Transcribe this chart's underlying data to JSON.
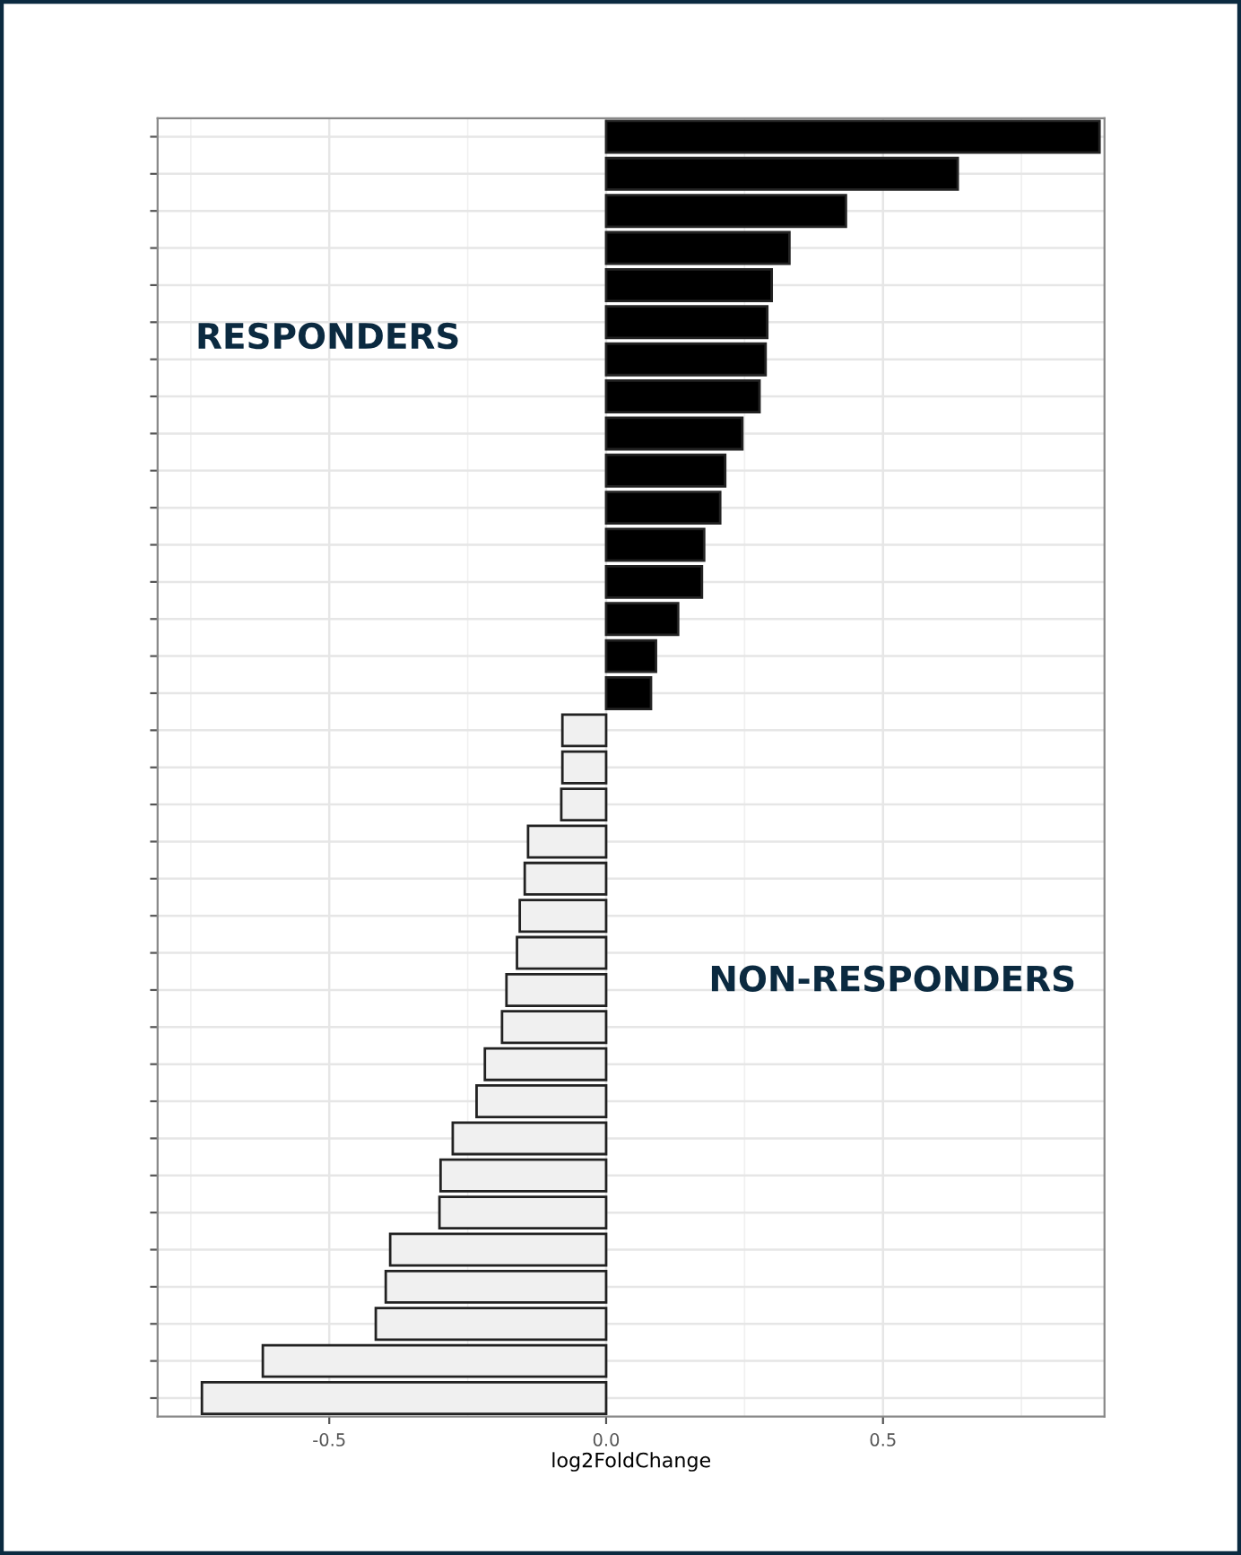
{
  "chart_data": {
    "type": "bar",
    "orientation": "horizontal",
    "xlabel": "log2FoldChange",
    "categories": [
      null,
      null,
      null,
      null,
      null,
      null,
      null,
      null,
      null,
      null,
      null,
      null,
      null,
      null,
      null,
      null,
      null,
      null,
      null,
      null,
      null,
      null,
      null,
      null,
      null,
      null,
      null,
      null,
      null,
      null,
      null,
      null,
      null,
      null,
      null
    ],
    "values": [
      0.891,
      0.635,
      0.433,
      0.331,
      0.299,
      0.291,
      0.288,
      0.277,
      0.246,
      0.215,
      0.206,
      0.177,
      0.173,
      0.13,
      0.09,
      0.081,
      -0.079,
      -0.079,
      -0.081,
      -0.141,
      -0.147,
      -0.156,
      -0.161,
      -0.18,
      -0.188,
      -0.219,
      -0.234,
      -0.277,
      -0.299,
      -0.301,
      -0.39,
      -0.398,
      -0.416,
      -0.62,
      -0.73
    ],
    "colors": [
      "#000000",
      "#000000",
      "#000000",
      "#000000",
      "#000000",
      "#000000",
      "#000000",
      "#000000",
      "#000000",
      "#000000",
      "#000000",
      "#000000",
      "#000000",
      "#000000",
      "#000000",
      "#000000",
      "#f0f0f0",
      "#f0f0f0",
      "#f0f0f0",
      "#f0f0f0",
      "#f0f0f0",
      "#f0f0f0",
      "#f0f0f0",
      "#f0f0f0",
      "#f0f0f0",
      "#f0f0f0",
      "#f0f0f0",
      "#f0f0f0",
      "#f0f0f0",
      "#f0f0f0",
      "#f0f0f0",
      "#f0f0f0",
      "#f0f0f0",
      "#f0f0f0",
      "#f0f0f0"
    ],
    "xlim": [
      -0.81,
      0.9
    ],
    "xticks": [
      {
        "value": -0.5,
        "label": "-0.5"
      },
      {
        "value": 0,
        "label": "0.0"
      },
      {
        "value": 0.5,
        "label": "0.5"
      }
    ],
    "grid": true,
    "annotations": [
      "RESPONDERS",
      "NON-RESPONDERS"
    ]
  }
}
